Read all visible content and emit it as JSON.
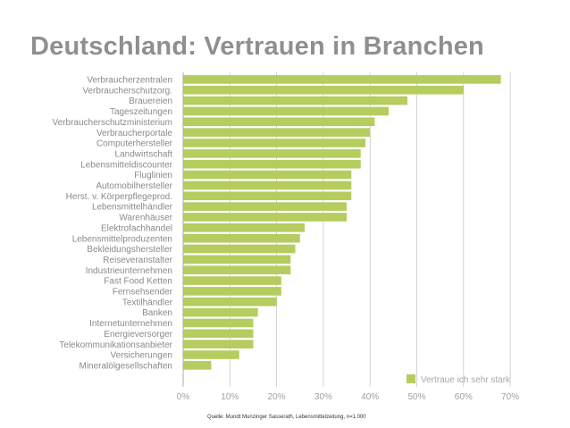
{
  "chart_data": {
    "type": "bar",
    "orientation": "horizontal",
    "title": "Deutschland: Vertrauen in Branchen",
    "xlim": [
      0,
      70
    ],
    "x_ticks": [
      "0%",
      "10%",
      "20%",
      "30%",
      "40%",
      "50%",
      "60%",
      "70%"
    ],
    "grid": true,
    "legend_position": "bottom-right",
    "bar_color": "#b5cc5f",
    "series": [
      {
        "name": "Vertraue ich sehr stark",
        "categories": [
          "Verbraucherzentralen",
          "Verbraucherschutzorg.",
          "Brauereien",
          "Tageszeitungen",
          "Verbraucherschutzministerium",
          "Verbraucherportale",
          "Computerhersteller",
          "Landwirtschaft",
          "Lebensmitteldiscounter",
          "Fluglinien",
          "Automobilhersteller",
          "Herst. v. Körperpflegeprod.",
          "Lebensmittelhändler",
          "Warenhäuser",
          "Elektrofachhandel",
          "Lebensmittelproduzenten",
          "Bekleidungshersteller",
          "Reiseveranstalter",
          "Industrieunternehmen",
          "Fast Food Ketten",
          "Fernsehsender",
          "Textilhändler",
          "Banken",
          "Internetunternehmen",
          "Energieversorger",
          "Telekommunikationsanbieter",
          "Versicherungen",
          "Mineralölgesellschaften"
        ],
        "values": [
          68,
          60,
          48,
          44,
          41,
          40,
          39,
          38,
          38,
          36,
          36,
          36,
          35,
          35,
          26,
          25,
          24,
          23,
          23,
          21,
          21,
          20,
          16,
          15,
          15,
          15,
          12,
          6
        ]
      }
    ]
  },
  "source_note": "Quelle: Mundt Munzinger Sasserath, Lebensmittelzeitung, n=1.000"
}
